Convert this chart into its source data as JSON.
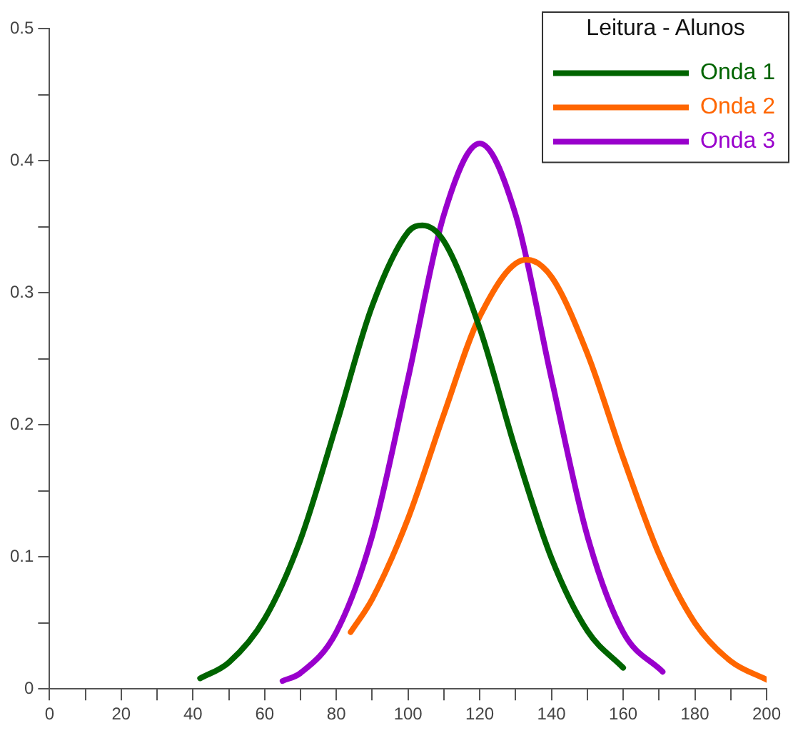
{
  "chart_data": {
    "type": "line",
    "legend_title": "Leitura - Alunos",
    "legend": "top right",
    "grid": false,
    "marker": "none",
    "line_style": "solid",
    "xlim": [
      0,
      200
    ],
    "ylim": [
      0,
      0.5
    ],
    "xticks": [
      0,
      {
        "value": 10,
        "label": null
      },
      20,
      {
        "value": 30,
        "label": null
      },
      40,
      {
        "value": 50,
        "label": null
      },
      60,
      {
        "value": 70,
        "label": null
      },
      80,
      {
        "value": 90,
        "label": null
      },
      100,
      {
        "value": 110,
        "label": null
      },
      120,
      {
        "value": 130,
        "label": null
      },
      140,
      {
        "value": 150,
        "label": null
      },
      160,
      {
        "value": 170,
        "label": null
      },
      180,
      {
        "value": 190,
        "label": null
      },
      200
    ],
    "yticks": [
      0,
      {
        "value": 0.05,
        "label": null
      },
      0.1,
      {
        "value": 0.15,
        "label": null
      },
      0.2,
      {
        "value": 0.25,
        "label": null
      },
      0.3,
      {
        "value": 0.35,
        "label": null
      },
      0.4,
      {
        "value": 0.45,
        "label": null
      },
      0.5
    ],
    "series": [
      {
        "name": "Onda 1",
        "color": "#006400",
        "x": [
          42,
          50,
          60,
          70,
          80,
          90,
          100,
          104,
          110,
          120,
          130,
          140,
          150,
          160
        ],
        "values": [
          0.008,
          0.02,
          0.053,
          0.113,
          0.2,
          0.29,
          0.346,
          0.351,
          0.339,
          0.273,
          0.181,
          0.099,
          0.044,
          0.016
        ]
      },
      {
        "name": "Onda 2",
        "color": "#ff6600",
        "x": [
          84,
          90,
          100,
          110,
          120,
          133,
          140,
          150,
          160,
          170,
          180,
          190,
          200
        ],
        "values": [
          0.043,
          0.068,
          0.129,
          0.208,
          0.282,
          0.325,
          0.312,
          0.254,
          0.175,
          0.102,
          0.05,
          0.021,
          0.007
        ]
      },
      {
        "name": "Onda 3",
        "color": "#9900cc",
        "x": [
          65,
          70,
          80,
          90,
          100,
          110,
          120,
          130,
          140,
          150,
          160,
          171
        ],
        "values": [
          0.006,
          0.012,
          0.043,
          0.116,
          0.235,
          0.359,
          0.413,
          0.359,
          0.235,
          0.116,
          0.043,
          0.013
        ]
      }
    ]
  }
}
